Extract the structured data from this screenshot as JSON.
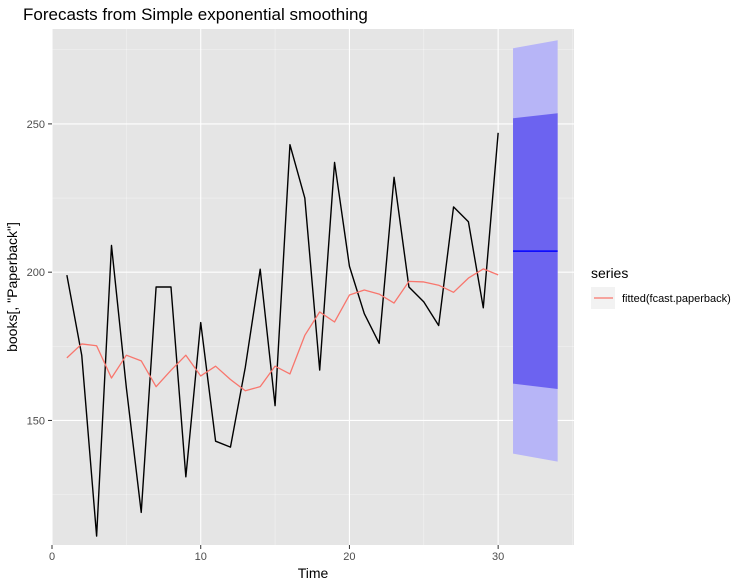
{
  "colors": {
    "panel": "#e5e5e5",
    "grid_major": "#ffffff",
    "observed": "#000000",
    "fitted": "#f8766d",
    "point_forecast": "#0000ff",
    "pi80": "#6c63f0",
    "pi95": "#b7b5f7"
  },
  "chart_data": {
    "type": "line",
    "title": "Forecasts from Simple exponential smoothing",
    "xlabel": "Time",
    "ylabel": "books[, \"Paperback\"]",
    "xlim": [
      0,
      35.1
    ],
    "ylim": [
      108,
      282
    ],
    "x_ticks": [
      0,
      10,
      20,
      30
    ],
    "y_ticks": [
      150,
      200,
      250
    ],
    "grid": true,
    "legend": {
      "title": "series",
      "placement": "right",
      "entries": [
        "fitted(fcast.paperback)"
      ]
    },
    "series": [
      {
        "role": "observed",
        "x": [
          1,
          2,
          3,
          4,
          5,
          6,
          7,
          8,
          9,
          10,
          11,
          12,
          13,
          14,
          15,
          16,
          17,
          18,
          19,
          20,
          21,
          22,
          23,
          24,
          25,
          26,
          27,
          28,
          29,
          30
        ],
        "values": [
          199,
          172,
          111,
          209,
          161,
          119,
          195,
          195,
          131,
          183,
          143,
          141,
          168,
          201,
          155,
          243,
          225,
          167,
          237,
          202,
          186,
          176,
          232,
          195,
          190,
          182,
          222,
          217,
          188,
          247
        ]
      },
      {
        "name": "fitted(fcast.paperback)",
        "role": "fitted",
        "x": [
          1,
          2,
          3,
          4,
          5,
          6,
          7,
          8,
          9,
          10,
          11,
          12,
          13,
          14,
          15,
          16,
          17,
          18,
          19,
          20,
          21,
          22,
          23,
          24,
          25,
          26,
          27,
          28,
          29,
          30
        ],
        "values": [
          171.1,
          175.8,
          175.2,
          164.3,
          172.0,
          170.1,
          161.4,
          166.9,
          172.0,
          165.0,
          168.3,
          163.8,
          160.0,
          161.4,
          168.3,
          165.7,
          178.7,
          186.6,
          183.2,
          192.3,
          194.0,
          192.6,
          189.6,
          196.9,
          196.7,
          195.6,
          193.2,
          198.0,
          201.1,
          199.1
        ]
      }
    ],
    "forecast": {
      "x": [
        31,
        34
      ],
      "point": [
        207.1,
        207.1
      ],
      "pi80_lower": [
        162.4,
        160.6
      ],
      "pi80_upper": [
        251.9,
        253.6
      ],
      "pi95_lower": [
        138.8,
        136.1
      ],
      "pi95_upper": [
        275.5,
        278.2
      ]
    }
  }
}
